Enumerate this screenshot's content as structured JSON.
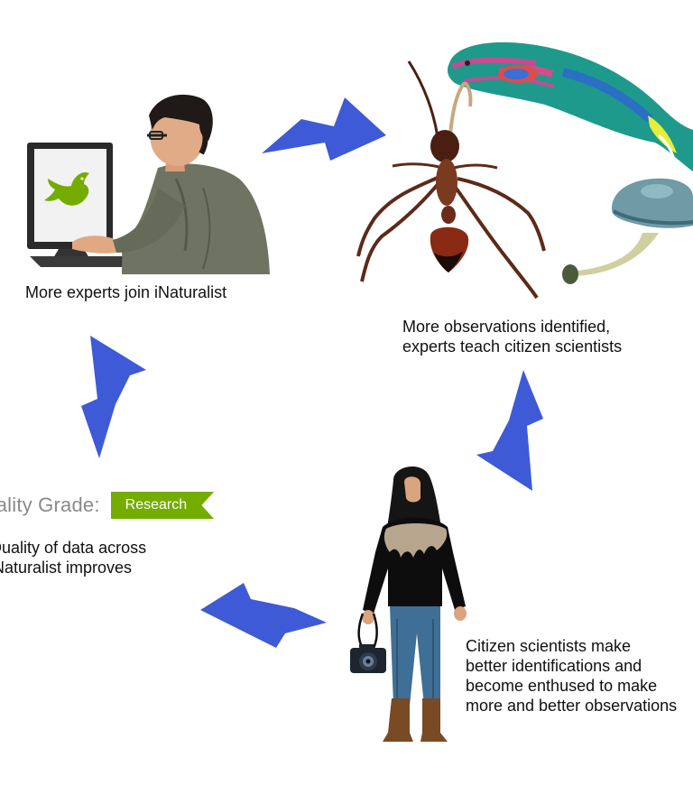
{
  "captions": {
    "experts": {
      "line1": "More experts join iNaturalist"
    },
    "observations": {
      "line1": "More observations identified,",
      "line2": "experts teach citizen scientists"
    },
    "citizens": {
      "line1": "Citizen scientists make",
      "line2": "better identifications and",
      "line3": "become enthused to make",
      "line4": "more and better observations"
    },
    "quality": {
      "line1": "Quality of data across",
      "line2": "iNaturalist improves"
    }
  },
  "quality_grade": {
    "label": "Quality Grade:",
    "badge": "Research"
  },
  "colors": {
    "arrow": "#3e5ad6",
    "badge": "#74ac00",
    "logo": "#74ac00"
  },
  "icons": [
    "computer-user-illustration",
    "inaturalist-bird-logo",
    "ant-illustration",
    "parrotfish-illustration",
    "mushroom-illustration",
    "photographer-woman-illustration",
    "camera-icon"
  ]
}
